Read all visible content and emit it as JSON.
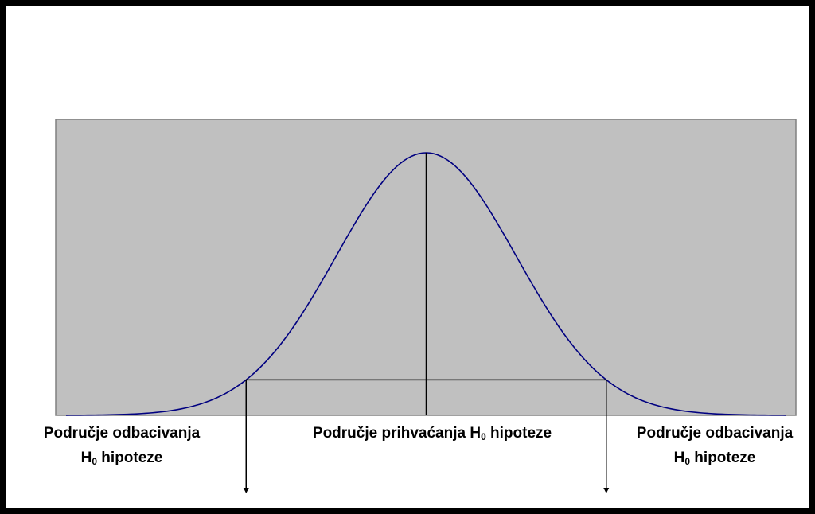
{
  "colors": {
    "border": "#000000",
    "background": "#ffffff",
    "plot_area": "#c0c0c0",
    "plot_border": "#808080",
    "curve": "#000080",
    "lines": "#000000"
  },
  "labels": {
    "left": {
      "line1": "Područje odbacivanja",
      "line2_prefix": "H",
      "line2_sub": "0",
      "line2_suffix": " hipoteze"
    },
    "center": {
      "prefix": "Područje prihvaćanja H",
      "sub": "0",
      "suffix": " hipoteze"
    },
    "right": {
      "line1": "Područje odbacivanja",
      "line2_prefix": "H",
      "line2_sub": "0",
      "line2_suffix": " hipoteze"
    }
  },
  "chart_data": {
    "type": "line",
    "curve": "normal-distribution",
    "mean": 0,
    "sd": 1,
    "xlim": [
      -4,
      4
    ],
    "critical_values": [
      -2,
      2
    ],
    "arrows": [
      "down-left",
      "down-right"
    ]
  }
}
